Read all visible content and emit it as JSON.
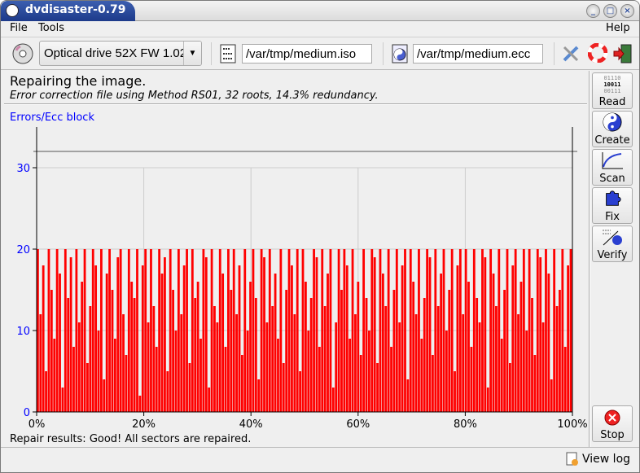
{
  "window": {
    "title": "dvdisaster-0.79",
    "buttons": [
      "minimize",
      "maximize",
      "close"
    ]
  },
  "menu": {
    "file": "File",
    "tools": "Tools",
    "help": "Help"
  },
  "toolbar": {
    "drive": "Optical drive 52X FW 1.02",
    "image_path": "/var/tmp/medium.iso",
    "ecc_path": "/var/tmp/medium.ecc",
    "icons": [
      "cd-icon",
      "image-file-icon",
      "ecc-file-icon",
      "preferences-icon",
      "help-icon",
      "quit-icon"
    ]
  },
  "status": {
    "title": "Repairing the image.",
    "subtitle": "Error correction file using Method RS01, 32 roots, 14.3% redundancy."
  },
  "sidebar": {
    "read": "Read",
    "read_bits": [
      "01110",
      "10011",
      "00111"
    ],
    "create": "Create",
    "scan": "Scan",
    "fix": "Fix",
    "verify": "Verify",
    "stop": "Stop"
  },
  "result": "Repair results: Good! All sectors are repaired.",
  "view_log": "View log",
  "chart_data": {
    "type": "bar",
    "ylabel": "Errors/Ecc block",
    "ylim": [
      0,
      35
    ],
    "yticks": [
      "0",
      "10",
      "20",
      "30"
    ],
    "xticks": [
      "0%",
      "20%",
      "40%",
      "60%",
      "80%",
      "100%"
    ],
    "xlim": [
      0,
      100
    ],
    "limit_line": 32,
    "grid": true,
    "bar_color": "#ff0000",
    "values": [
      20,
      12,
      18,
      5,
      20,
      15,
      9,
      20,
      17,
      3,
      20,
      14,
      19,
      8,
      20,
      11,
      16,
      20,
      6,
      13,
      20,
      18,
      10,
      20,
      4,
      17,
      20,
      15,
      9,
      19,
      20,
      12,
      7,
      20,
      16,
      14,
      20,
      2,
      18,
      20,
      11,
      20,
      13,
      8,
      20,
      17,
      19,
      5,
      20,
      15,
      10,
      20,
      12,
      18,
      20,
      6,
      20,
      14,
      16,
      9,
      20,
      19,
      3,
      20,
      13,
      11,
      20,
      17,
      8,
      20,
      15,
      20,
      12,
      18,
      7,
      20,
      10,
      16,
      20,
      14,
      4,
      20,
      19,
      11,
      20,
      13,
      17,
      9,
      20,
      6,
      15,
      20,
      18,
      12,
      20,
      5,
      20,
      16,
      10,
      14,
      20,
      19,
      8,
      20,
      13,
      17,
      20,
      3,
      11,
      20,
      15,
      20,
      18,
      9,
      20,
      12,
      16,
      7,
      20,
      14,
      10,
      20,
      19,
      6,
      20,
      17,
      13,
      20,
      8,
      15,
      20,
      11,
      18,
      20,
      4,
      20,
      16,
      12,
      20,
      9,
      14,
      20,
      19,
      7,
      20,
      13,
      17,
      20,
      10,
      15,
      20,
      5,
      18,
      20,
      12,
      20,
      16,
      8,
      20,
      14,
      11,
      20,
      19,
      3,
      20,
      17,
      13,
      20,
      9,
      15,
      20,
      6,
      18,
      20,
      12,
      16,
      20,
      10,
      20,
      14,
      7,
      20,
      19,
      11,
      20,
      17,
      4,
      20,
      13,
      15,
      20,
      8,
      18,
      20
    ]
  }
}
